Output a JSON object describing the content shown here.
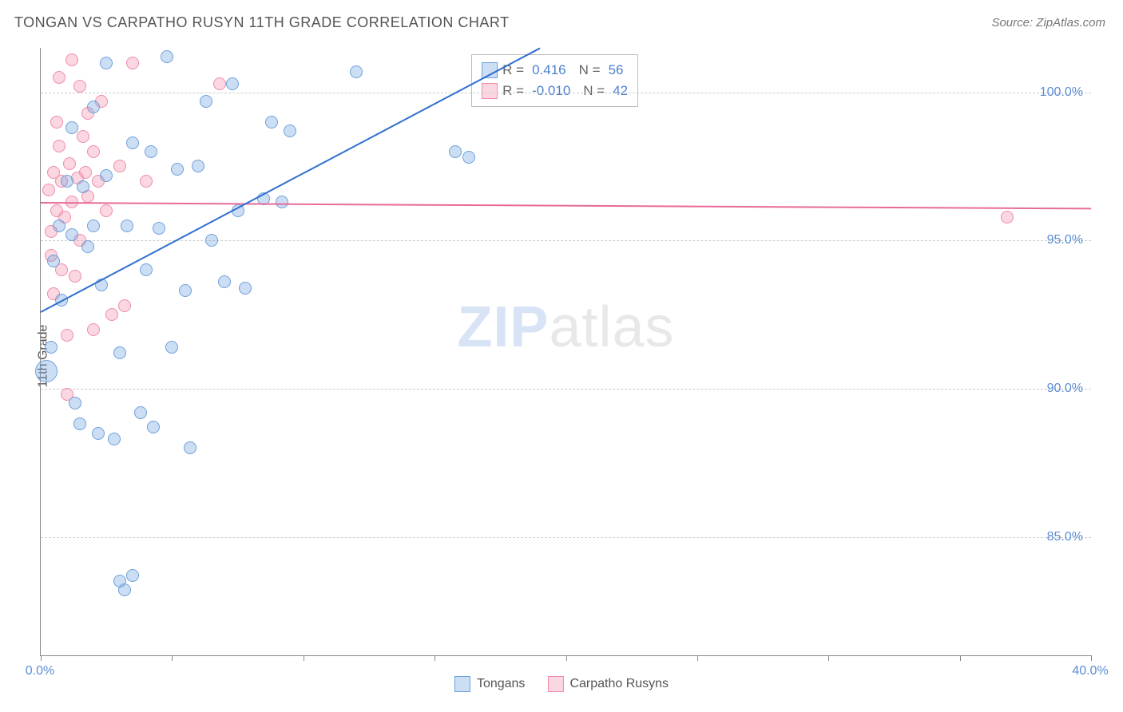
{
  "title": "TONGAN VS CARPATHO RUSYN 11TH GRADE CORRELATION CHART",
  "source": "Source: ZipAtlas.com",
  "ylabel": "11th Grade",
  "watermark": {
    "bold": "ZIP",
    "rest": "atlas"
  },
  "axes": {
    "xmin": 0,
    "xmax": 40,
    "ymin": 81,
    "ymax": 101.5,
    "xticks": [
      0,
      5,
      10,
      15,
      20,
      25,
      30,
      35,
      40
    ],
    "xtick_labels_shown": {
      "0": "0.0%",
      "40": "40.0%"
    },
    "yticks": [
      85,
      90,
      95,
      100
    ],
    "ytick_labels": {
      "85": "85.0%",
      "90": "90.0%",
      "95": "95.0%",
      "100": "100.0%"
    }
  },
  "colors": {
    "blue_fill": "rgba(110,160,220,0.35)",
    "blue_stroke": "#6ea0dc",
    "pink_fill": "rgba(240,140,170,0.35)",
    "pink_stroke": "#f08caa",
    "blue_line": "#2f6fd0",
    "pink_line": "#e86a9a",
    "axis_text": "#5b8dd6"
  },
  "stats": {
    "series1": {
      "R": "0.416",
      "N": "56"
    },
    "series2": {
      "R": "-0.010",
      "N": "42"
    }
  },
  "legend": {
    "series1": "Tongans",
    "series2": "Carpatho Rusyns"
  },
  "trend_lines": {
    "blue": {
      "x1": 0,
      "y1": 92.6,
      "x2": 19,
      "y2": 101.5
    },
    "pink": {
      "x1": 0,
      "y1": 96.3,
      "x2": 40,
      "y2": 96.1
    }
  },
  "series1_points": [
    {
      "x": 0.2,
      "y": 90.6,
      "r": 14
    },
    {
      "x": 0.4,
      "y": 91.4,
      "r": 8
    },
    {
      "x": 0.5,
      "y": 94.3,
      "r": 8
    },
    {
      "x": 0.7,
      "y": 95.5,
      "r": 8
    },
    {
      "x": 0.8,
      "y": 93.0,
      "r": 8
    },
    {
      "x": 1.0,
      "y": 97.0,
      "r": 8
    },
    {
      "x": 1.2,
      "y": 98.8,
      "r": 8
    },
    {
      "x": 1.2,
      "y": 95.2,
      "r": 8
    },
    {
      "x": 1.3,
      "y": 89.5,
      "r": 8
    },
    {
      "x": 1.5,
      "y": 88.8,
      "r": 8
    },
    {
      "x": 1.6,
      "y": 96.8,
      "r": 8
    },
    {
      "x": 1.8,
      "y": 94.8,
      "r": 8
    },
    {
      "x": 2.0,
      "y": 99.5,
      "r": 8
    },
    {
      "x": 2.0,
      "y": 95.5,
      "r": 8
    },
    {
      "x": 2.2,
      "y": 88.5,
      "r": 8
    },
    {
      "x": 2.3,
      "y": 93.5,
      "r": 8
    },
    {
      "x": 2.5,
      "y": 97.2,
      "r": 8
    },
    {
      "x": 2.5,
      "y": 101.0,
      "r": 8
    },
    {
      "x": 2.8,
      "y": 88.3,
      "r": 8
    },
    {
      "x": 3.0,
      "y": 91.2,
      "r": 8
    },
    {
      "x": 3.0,
      "y": 83.5,
      "r": 8
    },
    {
      "x": 3.2,
      "y": 83.2,
      "r": 8
    },
    {
      "x": 3.3,
      "y": 95.5,
      "r": 8
    },
    {
      "x": 3.5,
      "y": 83.7,
      "r": 8
    },
    {
      "x": 3.5,
      "y": 98.3,
      "r": 8
    },
    {
      "x": 3.8,
      "y": 89.2,
      "r": 8
    },
    {
      "x": 4.0,
      "y": 94.0,
      "r": 8
    },
    {
      "x": 4.2,
      "y": 98.0,
      "r": 8
    },
    {
      "x": 4.3,
      "y": 88.7,
      "r": 8
    },
    {
      "x": 4.5,
      "y": 95.4,
      "r": 8
    },
    {
      "x": 4.8,
      "y": 101.2,
      "r": 8
    },
    {
      "x": 5.0,
      "y": 91.4,
      "r": 8
    },
    {
      "x": 5.2,
      "y": 97.4,
      "r": 8
    },
    {
      "x": 5.5,
      "y": 93.3,
      "r": 8
    },
    {
      "x": 5.7,
      "y": 88.0,
      "r": 8
    },
    {
      "x": 6.0,
      "y": 97.5,
      "r": 8
    },
    {
      "x": 6.3,
      "y": 99.7,
      "r": 8
    },
    {
      "x": 6.5,
      "y": 95.0,
      "r": 8
    },
    {
      "x": 7.0,
      "y": 93.6,
      "r": 8
    },
    {
      "x": 7.3,
      "y": 100.3,
      "r": 8
    },
    {
      "x": 7.5,
      "y": 96.0,
      "r": 8
    },
    {
      "x": 7.8,
      "y": 93.4,
      "r": 8
    },
    {
      "x": 8.5,
      "y": 96.4,
      "r": 8
    },
    {
      "x": 8.8,
      "y": 99.0,
      "r": 8
    },
    {
      "x": 9.2,
      "y": 96.3,
      "r": 8
    },
    {
      "x": 9.5,
      "y": 98.7,
      "r": 8
    },
    {
      "x": 12.0,
      "y": 100.7,
      "r": 8
    },
    {
      "x": 15.8,
      "y": 98.0,
      "r": 8
    },
    {
      "x": 16.3,
      "y": 97.8,
      "r": 8
    }
  ],
  "series2_points": [
    {
      "x": 0.3,
      "y": 96.7,
      "r": 8
    },
    {
      "x": 0.4,
      "y": 95.3,
      "r": 8
    },
    {
      "x": 0.4,
      "y": 94.5,
      "r": 8
    },
    {
      "x": 0.5,
      "y": 97.3,
      "r": 8
    },
    {
      "x": 0.5,
      "y": 93.2,
      "r": 8
    },
    {
      "x": 0.6,
      "y": 99.0,
      "r": 8
    },
    {
      "x": 0.6,
      "y": 96.0,
      "r": 8
    },
    {
      "x": 0.7,
      "y": 98.2,
      "r": 8
    },
    {
      "x": 0.7,
      "y": 100.5,
      "r": 8
    },
    {
      "x": 0.8,
      "y": 97.0,
      "r": 8
    },
    {
      "x": 0.8,
      "y": 94.0,
      "r": 8
    },
    {
      "x": 0.9,
      "y": 95.8,
      "r": 8
    },
    {
      "x": 1.0,
      "y": 91.8,
      "r": 8
    },
    {
      "x": 1.0,
      "y": 89.8,
      "r": 8
    },
    {
      "x": 1.1,
      "y": 97.6,
      "r": 8
    },
    {
      "x": 1.2,
      "y": 101.1,
      "r": 8
    },
    {
      "x": 1.2,
      "y": 96.3,
      "r": 8
    },
    {
      "x": 1.3,
      "y": 93.8,
      "r": 8
    },
    {
      "x": 1.4,
      "y": 97.1,
      "r": 8
    },
    {
      "x": 1.5,
      "y": 100.2,
      "r": 8
    },
    {
      "x": 1.5,
      "y": 95.0,
      "r": 8
    },
    {
      "x": 1.6,
      "y": 98.5,
      "r": 8
    },
    {
      "x": 1.7,
      "y": 97.3,
      "r": 8
    },
    {
      "x": 1.8,
      "y": 99.3,
      "r": 8
    },
    {
      "x": 1.8,
      "y": 96.5,
      "r": 8
    },
    {
      "x": 2.0,
      "y": 98.0,
      "r": 8
    },
    {
      "x": 2.0,
      "y": 92.0,
      "r": 8
    },
    {
      "x": 2.2,
      "y": 97.0,
      "r": 8
    },
    {
      "x": 2.3,
      "y": 99.7,
      "r": 8
    },
    {
      "x": 2.5,
      "y": 96.0,
      "r": 8
    },
    {
      "x": 2.7,
      "y": 92.5,
      "r": 8
    },
    {
      "x": 3.0,
      "y": 97.5,
      "r": 8
    },
    {
      "x": 3.2,
      "y": 92.8,
      "r": 8
    },
    {
      "x": 3.5,
      "y": 101.0,
      "r": 8
    },
    {
      "x": 4.0,
      "y": 97.0,
      "r": 8
    },
    {
      "x": 6.8,
      "y": 100.3,
      "r": 8
    },
    {
      "x": 36.8,
      "y": 95.8,
      "r": 8
    }
  ]
}
